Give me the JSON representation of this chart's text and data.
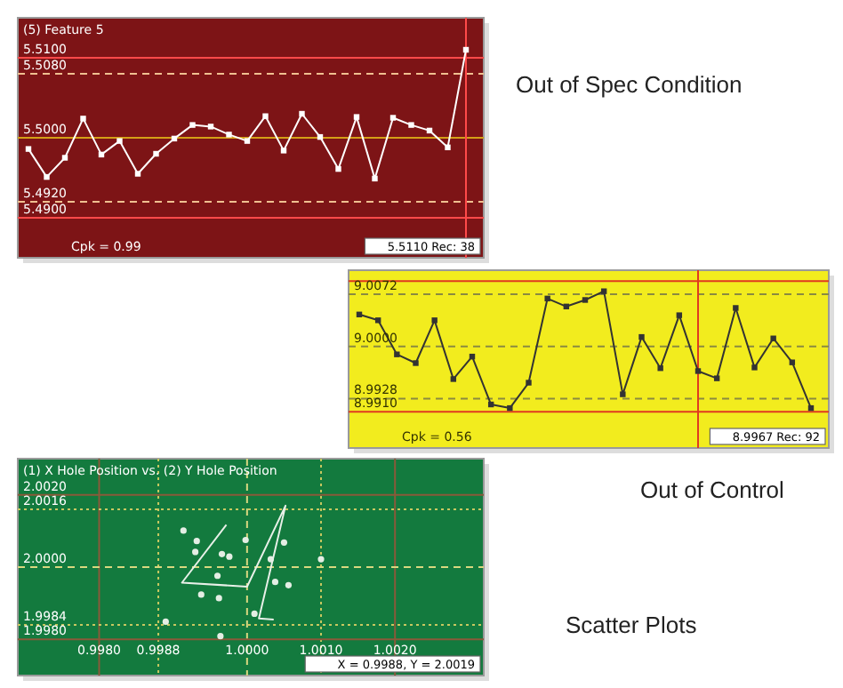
{
  "chart_data": [
    {
      "type": "line",
      "title": "(5) Feature  5",
      "annotations": [
        "Cpk = 0.99",
        "5.5110 Rec: 38",
        "Out of Spec Condition"
      ],
      "categories": [
        null,
        null,
        null,
        null,
        null,
        null,
        null,
        null,
        null,
        null,
        null,
        null,
        null,
        null,
        null,
        null,
        null,
        null,
        null,
        null,
        null,
        null,
        null,
        null,
        null
      ],
      "values": [
        5.4986,
        5.4951,
        5.4975,
        5.5024,
        5.4979,
        5.4996,
        5.4955,
        5.498,
        5.4999,
        5.5016,
        5.5014,
        5.5004,
        5.4996,
        5.5027,
        5.4984,
        5.503,
        5.5001,
        5.4961,
        5.5026,
        5.4949,
        5.5025,
        5.5016,
        5.5009,
        5.4988,
        5.511
      ],
      "color": "#ffffff",
      "marker": "square",
      "ylim": [
        5.485,
        5.515
      ],
      "yticks": [
        {
          "value": 5.51,
          "label": "5.5100"
        },
        {
          "value": 5.508,
          "label": "5.5080"
        },
        {
          "value": 5.5,
          "label": "5.5000"
        },
        {
          "value": 5.492,
          "label": "5.4920"
        },
        {
          "value": 5.49,
          "label": "5.4900"
        }
      ],
      "tick_labels": "y",
      "ref_lines": [
        {
          "axis": "y",
          "value": 5.51,
          "color": "#ff4a4a",
          "line_style": "solid"
        },
        {
          "axis": "y",
          "value": 5.508,
          "color": "#f0c090",
          "line_style": "dashed"
        },
        {
          "axis": "y",
          "value": 5.5,
          "color": "#d4a017",
          "line_style": "solid"
        },
        {
          "axis": "y",
          "value": 5.492,
          "color": "#f0c090",
          "line_style": "dashed"
        },
        {
          "axis": "y",
          "value": 5.49,
          "color": "#ff4a4a",
          "line_style": "solid"
        }
      ]
    },
    {
      "type": "line",
      "annotations": [
        "Cpk = 0.56",
        "8.9967 Rec: 92",
        "Out of Control"
      ],
      "categories": [
        null,
        null,
        null,
        null,
        null,
        null,
        null,
        null,
        null,
        null,
        null,
        null,
        null,
        null,
        null,
        null,
        null,
        null,
        null,
        null,
        null,
        null,
        null,
        null,
        null
      ],
      "values": [
        9.0044,
        9.0036,
        8.9989,
        8.9977,
        9.0036,
        8.9955,
        8.9986,
        8.992,
        8.9915,
        8.995,
        9.0066,
        9.0055,
        9.0064,
        9.0076,
        8.9934,
        9.0013,
        8.997,
        9.0043,
        8.9966,
        8.9956,
        9.0053,
        8.9971,
        9.0011,
        8.9978,
        8.9915
      ],
      "color": "#333333",
      "marker": "square",
      "ylim": [
        8.986,
        9.0105
      ],
      "yticks": [
        {
          "value": 9.0072,
          "label": "9.0072"
        },
        {
          "value": 9.0,
          "label": "9.0000"
        },
        {
          "value": 8.9928,
          "label": "8.9928"
        },
        {
          "value": 8.991,
          "label": "8.9910"
        }
      ],
      "tick_labels": "y",
      "ref_lines": [
        {
          "axis": "y",
          "value": 9.009,
          "color": "#e03a20",
          "line_style": "solid"
        },
        {
          "axis": "y",
          "value": 9.0072,
          "color": "#8a8a40",
          "line_style": "dashed"
        },
        {
          "axis": "y",
          "value": 9.0,
          "color": "#8a8a40",
          "line_style": "dashed"
        },
        {
          "axis": "y",
          "value": 8.9928,
          "color": "#8a8a40",
          "line_style": "dashed"
        },
        {
          "axis": "y",
          "value": 8.991,
          "color": "#e03a20",
          "line_style": "solid"
        }
      ]
    },
    {
      "type": "scatter",
      "title": "(1) X Hole Position vs. (2) Y Hole Position",
      "annotations": [
        "X = 0.9988, Y = 2.0019",
        "Scatter Plots"
      ],
      "series": [
        {
          "color": "#e4eee4",
          "x": [
            0.99914,
            0.99932,
            0.9993,
            0.99966,
            0.99976,
            0.99998,
            1.00032,
            1.0005,
            1.001,
            0.9996,
            0.99938,
            0.99962,
            1.00038,
            1.00056,
            1.0001,
            0.99964,
            0.9989
          ],
          "values": [
            2.00101,
            2.00072,
            2.00042,
            2.00036,
            2.00029,
            2.00075,
            2.00022,
            2.00068,
            2.00022,
            1.99976,
            1.99924,
            1.99914,
            1.99959,
            1.9995,
            1.99871,
            1.99809,
            1.99849
          ]
        },
        {
          "type": "line",
          "color": "#e8f0e8",
          "x": [
            0.99972,
            0.99912,
            1.0,
            1.00052,
            1.00016,
            1.00036
          ],
          "values": [
            2.00117,
            1.99957,
            1.99946,
            2.0017,
            1.99858,
            1.99855
          ]
        }
      ],
      "xlim": [
        0.9969,
        1.0032
      ],
      "xticks": [
        {
          "value": 0.998,
          "label": "0.9980"
        },
        {
          "value": 0.9988,
          "label": "0.9988"
        },
        {
          "value": 1.0,
          "label": "1.0000"
        },
        {
          "value": 1.001,
          "label": "1.0010"
        },
        {
          "value": 1.002,
          "label": "1.0020"
        }
      ],
      "ylim": [
        1.997,
        2.003
      ],
      "yticks": [
        {
          "value": 2.002,
          "label": "2.0020"
        },
        {
          "value": 2.0016,
          "label": "2.0016"
        },
        {
          "value": 2.0,
          "label": "2.0000"
        },
        {
          "value": 1.9984,
          "label": "1.9984"
        },
        {
          "value": 1.998,
          "label": "1.9980"
        }
      ],
      "ref_lines": [
        {
          "axis": "x",
          "value": 0.998,
          "color": "#8a5a3a",
          "line_style": "solid"
        },
        {
          "axis": "x",
          "value": 1.002,
          "color": "#8a5a3a",
          "line_style": "solid"
        },
        {
          "axis": "x",
          "value": 0.9988,
          "color": "#c8c860",
          "line_style": "dotted"
        },
        {
          "axis": "x",
          "value": 1.001,
          "color": "#c8c860",
          "line_style": "dotted"
        },
        {
          "axis": "x",
          "value": 1.0,
          "color": "#d8d880",
          "line_style": "dashed"
        },
        {
          "axis": "y",
          "value": 1.998,
          "color": "#8a5a3a",
          "line_style": "solid"
        },
        {
          "axis": "y",
          "value": 2.002,
          "color": "#8a5a3a",
          "line_style": "solid"
        },
        {
          "axis": "y",
          "value": 1.9984,
          "color": "#c8c860",
          "line_style": "dotted"
        },
        {
          "axis": "y",
          "value": 2.0016,
          "color": "#c8c860",
          "line_style": "dotted"
        },
        {
          "axis": "y",
          "value": 2.0,
          "color": "#d8d880",
          "line_style": "dashed"
        }
      ]
    }
  ]
}
